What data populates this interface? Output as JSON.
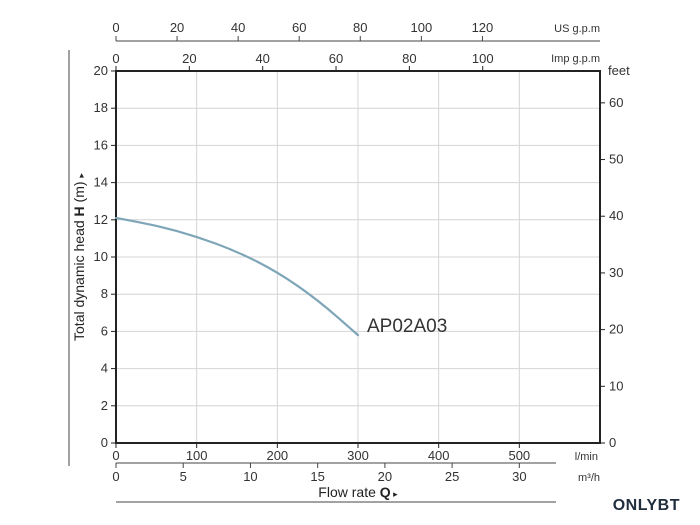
{
  "chart_data": {
    "type": "line",
    "title": "",
    "y_axis": {
      "label_prefix": "Total dynamic head",
      "label_symbol": "H",
      "label_unit": "(m)",
      "arrow": "▸",
      "range": [
        0,
        20
      ],
      "ticks": [
        0,
        2,
        4,
        6,
        8,
        10,
        12,
        14,
        16,
        18,
        20
      ]
    },
    "y2_axis": {
      "unit": "feet",
      "ticks": [
        0,
        10,
        20,
        30,
        40,
        50,
        60
      ]
    },
    "x_axis": {
      "unit": "l/min",
      "range": [
        0,
        600
      ],
      "ticks": [
        0,
        100,
        200,
        300,
        400,
        500
      ]
    },
    "x_axis_m3h": {
      "unit": "m³/h",
      "ticks": [
        0,
        5,
        10,
        15,
        20,
        25,
        30
      ]
    },
    "x_axis_title": {
      "prefix": "Flow rate",
      "symbol": "Q",
      "arrow": "▸"
    },
    "top_axis_us": {
      "unit": "US g.p.m",
      "ticks": [
        0,
        20,
        40,
        60,
        80,
        100,
        120
      ]
    },
    "top_axis_imp": {
      "unit": "Imp g.p.m",
      "ticks": [
        0,
        20,
        40,
        60,
        80,
        100
      ]
    },
    "grid": true,
    "series": [
      {
        "name": "AP02A03",
        "color": "#7fa6b8",
        "x": [
          0,
          50,
          100,
          150,
          200,
          250,
          300
        ],
        "y": [
          12.1,
          11.7,
          11.1,
          10.3,
          9.2,
          7.7,
          5.8
        ]
      }
    ]
  },
  "brand": "ONLYBT"
}
